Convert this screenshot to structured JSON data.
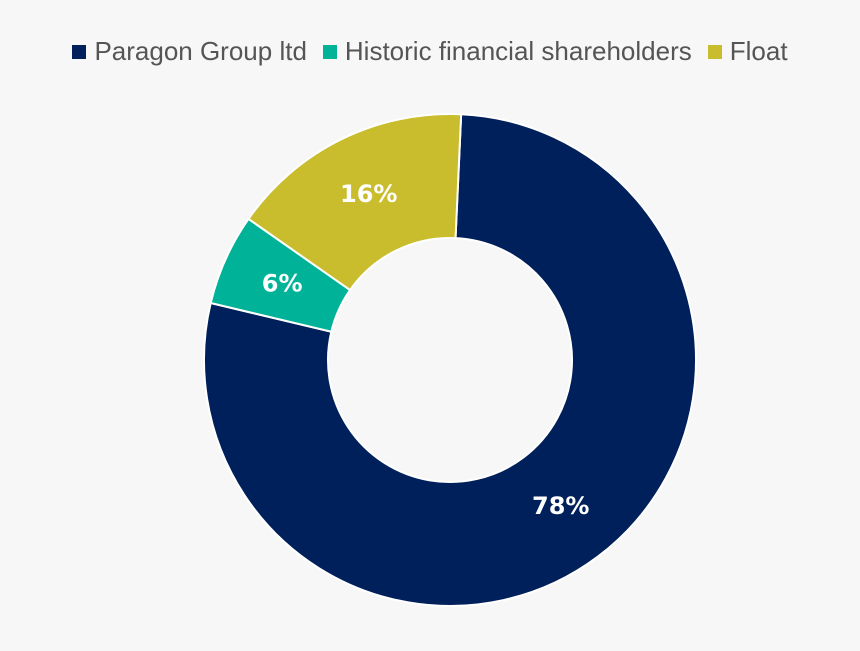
{
  "chart_data": {
    "type": "pie",
    "variant": "donut",
    "title": "",
    "legend_position": "top",
    "categories": [
      "Paragon Group ltd",
      "Historic financial shareholders",
      "Float"
    ],
    "values": [
      78,
      6,
      16
    ],
    "labels": [
      "78%",
      "6%",
      "16%"
    ],
    "colors": [
      "#00205b",
      "#00b398",
      "#c9bd2e"
    ]
  }
}
